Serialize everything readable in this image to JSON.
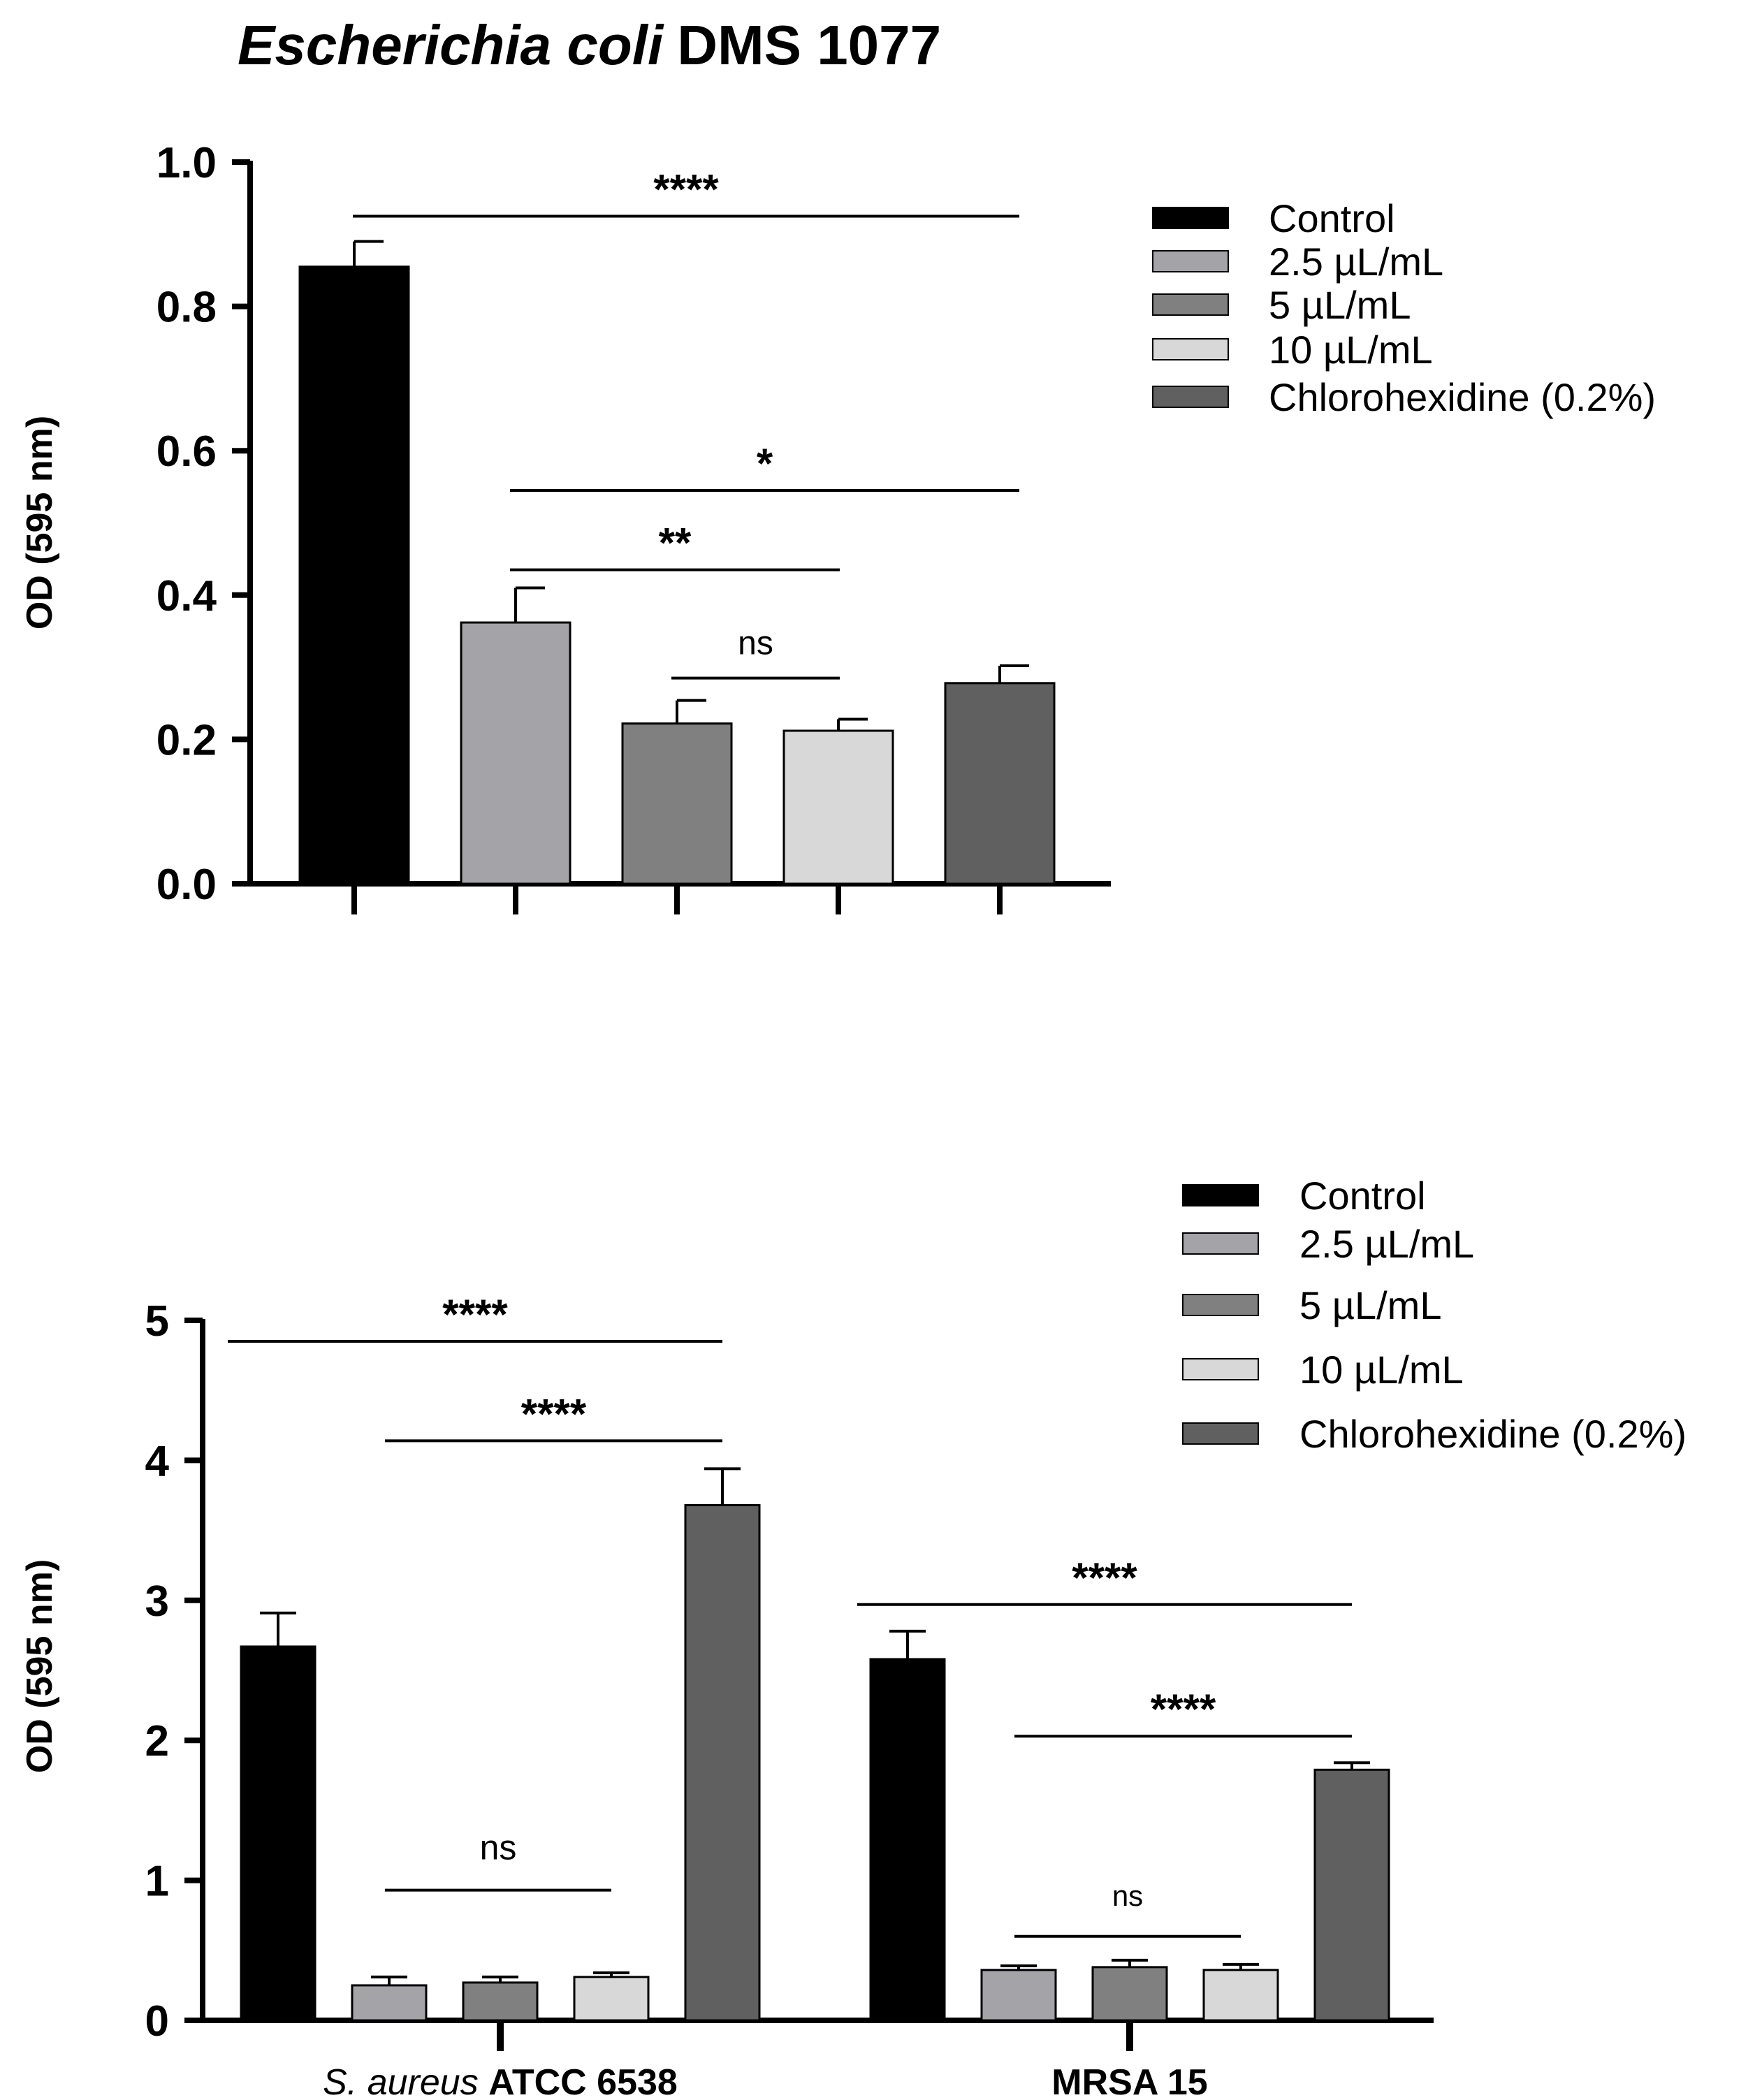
{
  "chart_data": [
    {
      "type": "bar",
      "title_italic": "Escherichia coli",
      "title_rest": "DMS 1077",
      "ylabel": "OD (595 nm)",
      "ylim": [
        0,
        1.0
      ],
      "yticks": [
        0.0,
        0.2,
        0.4,
        0.6,
        0.8,
        1.0
      ],
      "ytick_labels": [
        "0.0",
        "0.2",
        "0.4",
        "0.6",
        "0.8",
        "1.0"
      ],
      "legend_position": "top-right",
      "series": [
        {
          "name": "Control",
          "color": "#000000",
          "values": [
            0.855
          ],
          "errors": [
            0.035
          ]
        },
        {
          "name": "2.5 µL/mL",
          "color": "#a3a3a8",
          "values": [
            0.362
          ],
          "errors": [
            0.048
          ]
        },
        {
          "name": "5 µL/mL",
          "color": "#808080",
          "values": [
            0.222
          ],
          "errors": [
            0.032
          ]
        },
        {
          "name": "10 µL/mL",
          "color": "#d8d8d8",
          "values": [
            0.212
          ],
          "errors": [
            0.016
          ]
        },
        {
          "name": "Chlorohexidine (0.2%)",
          "color": "#606060",
          "values": [
            0.278
          ],
          "errors": [
            0.024
          ]
        }
      ],
      "significance": [
        {
          "from": 0,
          "to": 4,
          "label": "****",
          "level": 0.925
        },
        {
          "from": 1,
          "to": 4,
          "label": "*",
          "level": 0.545
        },
        {
          "from": 1,
          "to": 3,
          "label": "**",
          "level": 0.435
        },
        {
          "from": 2,
          "to": 3,
          "label": "ns",
          "level": 0.285
        }
      ]
    },
    {
      "type": "bar",
      "ylabel": "OD (595 nm)",
      "ylim": [
        0,
        5
      ],
      "yticks": [
        0,
        1,
        2,
        3,
        4,
        5
      ],
      "ytick_labels": [
        "0",
        "1",
        "2",
        "3",
        "4",
        "5"
      ],
      "legend_position": "top-right",
      "categories": [
        {
          "italic": "S. aureus",
          "bold": "ATCC 6538"
        },
        {
          "italic": "",
          "bold": "MRSA 15"
        }
      ],
      "series": [
        {
          "name": "Control",
          "color": "#000000",
          "values": [
            2.67,
            2.58
          ],
          "errors": [
            0.24,
            0.2
          ]
        },
        {
          "name": "2.5 µL/mL",
          "color": "#a3a3a8",
          "values": [
            0.25,
            0.36
          ],
          "errors": [
            0.06,
            0.03
          ]
        },
        {
          "name": "5 µL/mL",
          "color": "#808080",
          "values": [
            0.27,
            0.38
          ],
          "errors": [
            0.04,
            0.05
          ]
        },
        {
          "name": "10 µL/mL",
          "color": "#d8d8d8",
          "values": [
            0.31,
            0.36
          ],
          "errors": [
            0.03,
            0.04
          ]
        },
        {
          "name": "Chlorohexidine (0.2%)",
          "color": "#606060",
          "values": [
            3.68,
            1.79
          ],
          "errors": [
            0.26,
            0.05
          ]
        }
      ],
      "significance": [
        {
          "group": 0,
          "from": 0,
          "to": 4,
          "label": "****",
          "level": 4.85
        },
        {
          "group": 0,
          "from": 1,
          "to": 4,
          "label": "****",
          "level": 4.14
        },
        {
          "group": 0,
          "from": 1,
          "to": 3,
          "label": "ns",
          "level": 0.93
        },
        {
          "group": 1,
          "from": 0,
          "to": 4,
          "label": "****",
          "level": 2.97
        },
        {
          "group": 1,
          "from": 1,
          "to": 4,
          "label": "****",
          "level": 2.03
        },
        {
          "group": 1,
          "from": 1,
          "to": 3,
          "label": "ns",
          "level": 0.6
        }
      ]
    }
  ]
}
